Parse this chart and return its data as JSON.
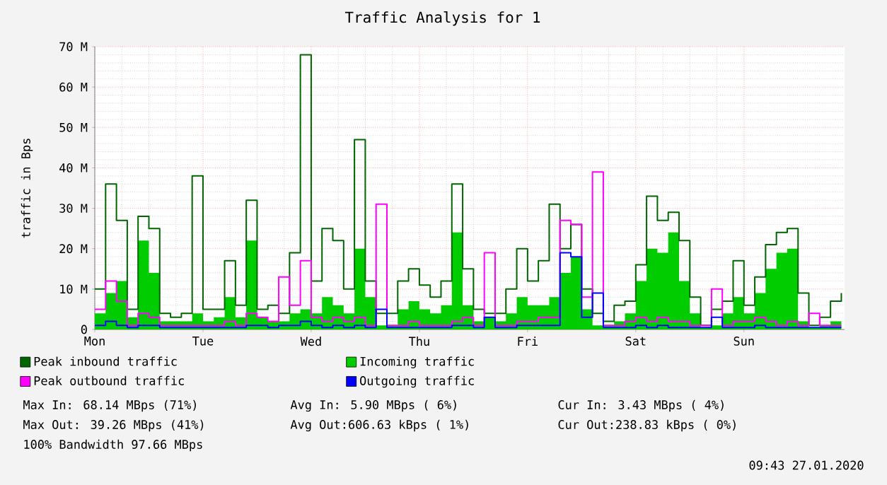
{
  "chart_data": {
    "type": "step",
    "title": "Traffic Analysis for 1",
    "ylabel": "traffic in Bps",
    "categories": [
      "Mon",
      null,
      null,
      null,
      null,
      null,
      null,
      null,
      null,
      null,
      "Tue",
      null,
      null,
      null,
      null,
      null,
      null,
      null,
      null,
      null,
      "Wed",
      null,
      null,
      null,
      null,
      null,
      null,
      null,
      null,
      null,
      "Thu",
      null,
      null,
      null,
      null,
      null,
      null,
      null,
      null,
      null,
      "Fri",
      null,
      null,
      null,
      null,
      null,
      null,
      null,
      null,
      null,
      "Sat",
      null,
      null,
      null,
      null,
      null,
      null,
      null,
      null,
      null,
      "Sun",
      null,
      null,
      null,
      null,
      null,
      null,
      null,
      null,
      null
    ],
    "series": [
      {
        "name": "Peak inbound traffic",
        "color": "#006600",
        "values": [
          10,
          36,
          27,
          5,
          28,
          25,
          4,
          3,
          4,
          38,
          5,
          5,
          17,
          6,
          32,
          5,
          6,
          4,
          19,
          68,
          12,
          25,
          22,
          10,
          47,
          12,
          4,
          4,
          12,
          15,
          11,
          8,
          12,
          36,
          15,
          5,
          4,
          4,
          10,
          20,
          12,
          17,
          31,
          20,
          26,
          10,
          4,
          2,
          6,
          7,
          16,
          33,
          27,
          29,
          22,
          8,
          1,
          5,
          7,
          17,
          6,
          13,
          21,
          24,
          25,
          9,
          1,
          3,
          7,
          9
        ]
      },
      {
        "name": "Incoming traffic",
        "color": "#00cc00",
        "type": "area",
        "values": [
          4,
          9,
          12,
          3,
          22,
          14,
          2,
          2,
          2,
          4,
          2,
          3,
          8,
          3,
          22,
          3,
          2,
          2,
          4,
          5,
          4,
          8,
          6,
          4,
          20,
          8,
          1,
          1,
          5,
          7,
          5,
          4,
          6,
          24,
          6,
          2,
          3,
          2,
          4,
          8,
          6,
          6,
          8,
          14,
          18,
          5,
          1,
          1,
          2,
          4,
          12,
          20,
          19,
          24,
          12,
          4,
          0.5,
          1,
          4,
          8,
          4,
          9,
          15,
          19,
          20,
          2,
          0.5,
          1,
          2,
          2
        ]
      },
      {
        "name": "Peak outbound traffic",
        "color": "#ff00ff",
        "values": [
          5,
          12,
          7,
          1,
          4,
          3,
          1,
          1,
          1,
          1,
          1,
          1,
          2,
          1,
          4,
          3,
          2,
          13,
          6,
          17,
          3,
          2,
          3,
          2,
          3,
          1,
          31,
          1,
          1,
          2,
          1,
          1,
          1,
          2,
          3,
          1,
          19,
          1,
          1,
          2,
          2,
          3,
          3,
          27,
          26,
          8,
          39,
          1,
          1,
          2,
          3,
          2,
          3,
          2,
          2,
          1,
          1,
          10,
          1,
          2,
          2,
          3,
          2,
          1,
          2,
          1,
          4,
          1,
          1,
          1
        ]
      },
      {
        "name": "Outgoing traffic",
        "color": "#0000ff",
        "values": [
          1,
          2,
          1,
          0.5,
          1,
          1,
          0.5,
          0.5,
          0.5,
          0.5,
          0.5,
          0.5,
          0.5,
          0.5,
          1,
          1,
          0.5,
          1,
          1,
          2,
          1,
          0.5,
          1,
          0.5,
          1,
          0.5,
          5,
          0.5,
          0.5,
          0.5,
          0.5,
          0.5,
          0.5,
          1,
          1,
          0.5,
          3,
          0.5,
          0.5,
          1,
          1,
          1,
          1,
          19,
          18,
          3,
          9,
          0.5,
          0.5,
          0.5,
          1,
          0.5,
          1,
          0.5,
          0.5,
          0.5,
          0.5,
          3,
          0.5,
          0.5,
          0.5,
          1,
          0.5,
          0.5,
          0.5,
          0.5,
          0.5,
          0.5,
          0.5,
          0.5
        ]
      }
    ],
    "ylim": [
      0,
      70
    ],
    "yticks": [
      0,
      {
        "value": 10,
        "label": "10 M"
      },
      {
        "value": 20,
        "label": "20 M"
      },
      {
        "value": 30,
        "label": "30 M"
      },
      {
        "value": 40,
        "label": "40 M"
      },
      {
        "value": 50,
        "label": "50 M"
      },
      {
        "value": 60,
        "label": "60 M"
      },
      {
        "value": 70,
        "label": "70 M"
      }
    ],
    "grid": true,
    "legend": "bottom",
    "annotations": [
      "Max In:  68.14 MBps (71%)",
      "Avg In:   5.90 MBps ( 6%)",
      "Cur In:   3.43 MBps ( 4%)",
      "Max Out: 39.26 MBps (41%)",
      "Avg Out:606.63 kBps ( 1%)",
      "Cur Out:238.83 kBps ( 0%)",
      "100% Bandwidth 97.66 MBps",
      "09:43 27.01.2020"
    ]
  }
}
